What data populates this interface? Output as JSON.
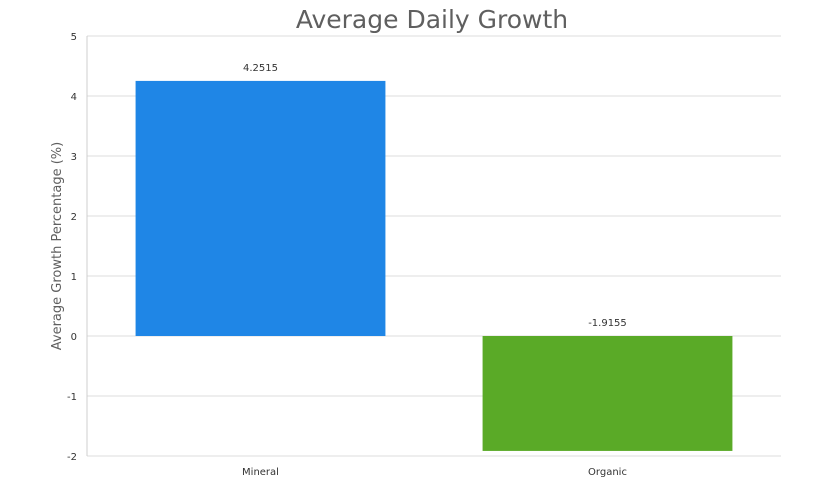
{
  "chart_data": {
    "type": "bar",
    "title": "Average Daily Growth",
    "xlabel": "",
    "ylabel": "Average Growth Percentage (%)",
    "categories": [
      "Mineral",
      "Organic"
    ],
    "values": [
      4.2515,
      -1.9155
    ],
    "data_labels": [
      "4.2515",
      "-1.9155"
    ],
    "colors": [
      "#1f86e6",
      "#5aaa27"
    ],
    "ylim": [
      -2,
      5
    ],
    "yticks": [
      5,
      4,
      3,
      2,
      1,
      0,
      -1,
      -2
    ],
    "grid": true,
    "legend": "none"
  }
}
